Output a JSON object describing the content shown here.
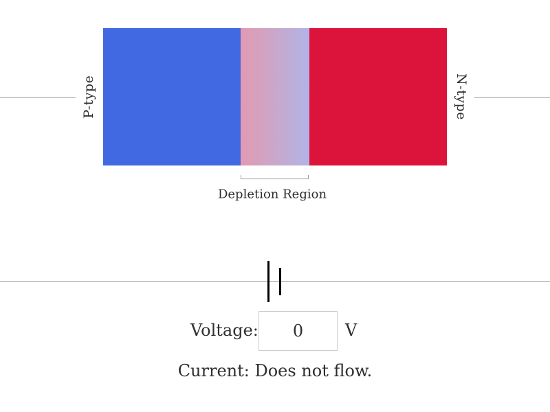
{
  "diode": {
    "p_label": "P-type",
    "n_label": "N-type",
    "depletion_label": "Depletion Region",
    "colors": {
      "p_region": "#4169e1",
      "n_region": "#dc143c",
      "depletion_left": "#e39ab0",
      "depletion_right": "#b0b4e6",
      "wire": "#999999",
      "battery": "#000000"
    }
  },
  "controls": {
    "voltage_label": "Voltage:",
    "voltage_value": "0",
    "voltage_unit": "V",
    "current_label": "Current:",
    "current_status": "Does not flow."
  }
}
